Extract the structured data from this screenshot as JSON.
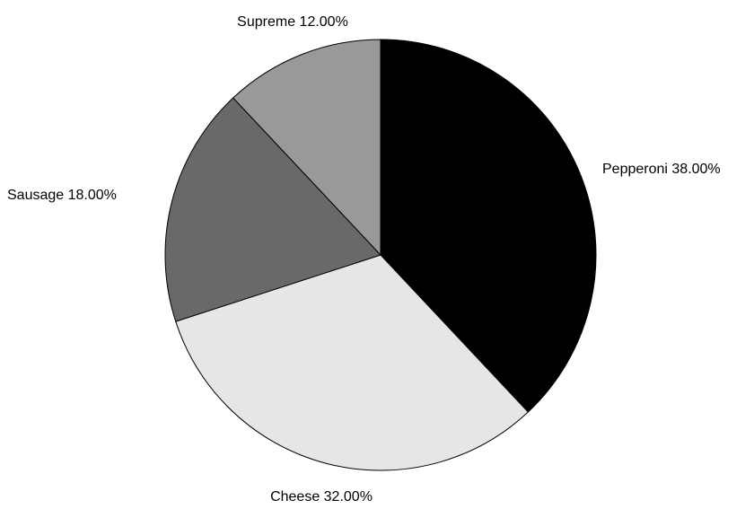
{
  "chart_data": {
    "type": "pie",
    "slices": [
      {
        "label": "Pepperoni",
        "value": 38.0,
        "display": "Pepperoni 38.00%",
        "color": "#000000"
      },
      {
        "label": "Cheese",
        "value": 32.0,
        "display": "Cheese 32.00%",
        "color": "#e6e6e6"
      },
      {
        "label": "Sausage",
        "value": 18.0,
        "display": "Sausage 18.00%",
        "color": "#696969"
      },
      {
        "label": "Supreme",
        "value": 12.0,
        "display": "Supreme 12.00%",
        "color": "#999999"
      }
    ],
    "start_angle": "12 o'clock",
    "direction": "clockwise",
    "slice_border_color": "#000000",
    "background": "#ffffff"
  }
}
